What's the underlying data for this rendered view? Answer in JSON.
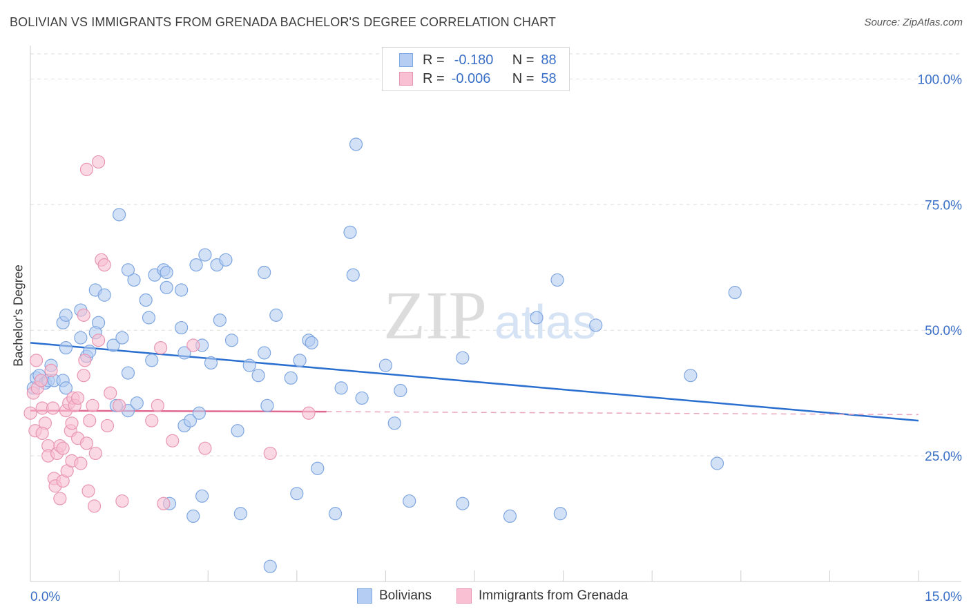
{
  "title": "BOLIVIAN VS IMMIGRANTS FROM GRENADA BACHELOR'S DEGREE CORRELATION CHART",
  "source": "Source: ZipAtlas.com",
  "watermark": {
    "zip": "ZIP",
    "atlas": "atlas"
  },
  "legend": {
    "r_label": "R =",
    "n_label": "N =",
    "rows": [
      {
        "r": "-0.180",
        "n": "88",
        "fill": "#b5cdf2",
        "stroke": "#7ea6e0"
      },
      {
        "r": "-0.006",
        "n": "58",
        "fill": "#f8c0d2",
        "stroke": "#e896b3"
      }
    ]
  },
  "bottom_legend": [
    {
      "label": "Bolivians",
      "fill": "#b5cdf2",
      "stroke": "#7ea6e0"
    },
    {
      "label": "Immigrants from Grenada",
      "fill": "#f8c0d2",
      "stroke": "#e896b3"
    }
  ],
  "chart_data": {
    "type": "scatter",
    "title": "BOLIVIAN VS IMMIGRANTS FROM GRENADA BACHELOR'S DEGREE CORRELATION CHART",
    "xlabel": "",
    "ylabel": "Bachelor's Degree",
    "xlim": [
      0,
      15
    ],
    "ylim": [
      0,
      105
    ],
    "x_tick_labels": [
      {
        "v": 0,
        "t": "0.0%"
      },
      {
        "v": 15,
        "t": "15.0%"
      }
    ],
    "x_minor_ticks": [
      1.5,
      3,
      4.5,
      6,
      7.5,
      9,
      10.5,
      12,
      13.5,
      15
    ],
    "y_ticks": [
      {
        "v": 25,
        "t": "25.0%"
      },
      {
        "v": 50,
        "t": "50.0%"
      },
      {
        "v": 75,
        "t": "75.0%"
      },
      {
        "v": 100,
        "t": "100.0%"
      }
    ],
    "grid": true,
    "series": [
      {
        "name": "Bolivians",
        "color": "#7ea6e0",
        "fill": "#b5cdf2",
        "line_color": "#2a6fcf",
        "trend": {
          "x0": 0,
          "y0": 47.5,
          "x1": 15,
          "y1": 32.0
        },
        "points": [
          [
            0.05,
            38.5
          ],
          [
            0.1,
            40.5
          ],
          [
            0.15,
            41.0
          ],
          [
            0.25,
            39.5
          ],
          [
            0.35,
            43.0
          ],
          [
            0.3,
            40.0
          ],
          [
            0.4,
            40.0
          ],
          [
            0.55,
            40.0
          ],
          [
            0.6,
            38.5
          ],
          [
            0.6,
            46.5
          ],
          [
            0.55,
            51.5
          ],
          [
            0.6,
            53.0
          ],
          [
            0.85,
            48.5
          ],
          [
            0.85,
            54.0
          ],
          [
            1.15,
            51.5
          ],
          [
            1.1,
            49.5
          ],
          [
            0.95,
            44.8
          ],
          [
            1.0,
            45.8
          ],
          [
            1.1,
            58.0
          ],
          [
            1.25,
            57.0
          ],
          [
            1.5,
            73.0
          ],
          [
            1.4,
            47.0
          ],
          [
            1.55,
            48.5
          ],
          [
            1.65,
            41.5
          ],
          [
            1.75,
            60.0
          ],
          [
            1.65,
            62.0
          ],
          [
            1.95,
            56.0
          ],
          [
            2.0,
            52.5
          ],
          [
            2.05,
            44.0
          ],
          [
            2.1,
            61.0
          ],
          [
            2.3,
            58.5
          ],
          [
            2.25,
            62.0
          ],
          [
            2.3,
            61.5
          ],
          [
            2.55,
            58.0
          ],
          [
            2.55,
            50.5
          ],
          [
            2.6,
            45.5
          ],
          [
            2.8,
            63.0
          ],
          [
            2.9,
            47.0
          ],
          [
            2.95,
            65.0
          ],
          [
            3.15,
            63.0
          ],
          [
            3.3,
            64.0
          ],
          [
            3.05,
            43.5
          ],
          [
            3.2,
            52.0
          ],
          [
            3.4,
            48.0
          ],
          [
            3.7,
            43.0
          ],
          [
            3.85,
            41.0
          ],
          [
            3.95,
            45.5
          ],
          [
            3.95,
            61.5
          ],
          [
            4.15,
            53.0
          ],
          [
            4.4,
            40.5
          ],
          [
            4.55,
            44.0
          ],
          [
            4.7,
            48.0
          ],
          [
            4.75,
            47.5
          ],
          [
            5.25,
            38.5
          ],
          [
            5.4,
            69.5
          ],
          [
            5.45,
            61.0
          ],
          [
            5.5,
            87.0
          ],
          [
            5.6,
            36.5
          ],
          [
            6.0,
            43.0
          ],
          [
            6.15,
            31.5
          ],
          [
            6.25,
            38.0
          ],
          [
            5.15,
            13.5
          ],
          [
            4.85,
            22.5
          ],
          [
            4.5,
            17.5
          ],
          [
            4.05,
            3.0
          ],
          [
            3.55,
            13.5
          ],
          [
            3.5,
            30.0
          ],
          [
            2.6,
            31.0
          ],
          [
            2.7,
            32.0
          ],
          [
            2.75,
            13.0
          ],
          [
            2.85,
            33.5
          ],
          [
            2.35,
            15.5
          ],
          [
            2.9,
            17.0
          ],
          [
            1.65,
            34.0
          ],
          [
            1.8,
            35.5
          ],
          [
            1.45,
            35.0
          ],
          [
            7.3,
            44.5
          ],
          [
            7.3,
            15.5
          ],
          [
            8.1,
            13.0
          ],
          [
            8.55,
            52.5
          ],
          [
            8.9,
            60.0
          ],
          [
            8.95,
            13.5
          ],
          [
            9.55,
            51.0
          ],
          [
            11.15,
            41.0
          ],
          [
            11.6,
            23.5
          ],
          [
            11.9,
            57.5
          ],
          [
            4.0,
            35.0
          ],
          [
            6.4,
            16.0
          ]
        ]
      },
      {
        "name": "Immigrants from Grenada",
        "color": "#e896b3",
        "fill": "#f8c0d2",
        "line_color": "#e0678f",
        "trend": {
          "x0": 0,
          "y0": 34.0,
          "x1": 5.0,
          "y1": 33.8
        },
        "trend_dashed_end": {
          "x": 15,
          "y": 33.2
        },
        "points": [
          [
            0.0,
            33.5
          ],
          [
            0.05,
            37.5
          ],
          [
            0.08,
            30.0
          ],
          [
            0.12,
            38.5
          ],
          [
            0.18,
            40.0
          ],
          [
            0.2,
            34.5
          ],
          [
            0.25,
            31.5
          ],
          [
            0.3,
            27.0
          ],
          [
            0.3,
            25.0
          ],
          [
            0.35,
            42.0
          ],
          [
            0.38,
            34.5
          ],
          [
            0.4,
            20.5
          ],
          [
            0.42,
            19.0
          ],
          [
            0.45,
            25.5
          ],
          [
            0.5,
            27.0
          ],
          [
            0.5,
            16.5
          ],
          [
            0.55,
            26.5
          ],
          [
            0.55,
            20.0
          ],
          [
            0.6,
            34.0
          ],
          [
            0.62,
            22.0
          ],
          [
            0.65,
            35.5
          ],
          [
            0.68,
            30.0
          ],
          [
            0.7,
            24.0
          ],
          [
            0.72,
            36.5
          ],
          [
            0.75,
            35.0
          ],
          [
            0.8,
            28.5
          ],
          [
            0.85,
            23.5
          ],
          [
            0.9,
            53.0
          ],
          [
            0.9,
            41.0
          ],
          [
            0.92,
            44.0
          ],
          [
            0.95,
            27.5
          ],
          [
            0.98,
            18.0
          ],
          [
            1.0,
            32.0
          ],
          [
            1.05,
            35.0
          ],
          [
            1.08,
            15.0
          ],
          [
            1.1,
            25.5
          ],
          [
            1.15,
            48.0
          ],
          [
            1.2,
            64.0
          ],
          [
            1.25,
            63.0
          ],
          [
            1.3,
            31.0
          ],
          [
            1.35,
            37.5
          ],
          [
            1.5,
            35.0
          ],
          [
            1.55,
            16.0
          ],
          [
            2.05,
            32.0
          ],
          [
            2.15,
            35.0
          ],
          [
            2.2,
            46.5
          ],
          [
            2.25,
            15.5
          ],
          [
            2.4,
            28.0
          ],
          [
            2.75,
            47.0
          ],
          [
            2.95,
            26.5
          ],
          [
            4.05,
            25.5
          ],
          [
            4.7,
            33.5
          ],
          [
            0.8,
            36.5
          ],
          [
            0.7,
            31.5
          ],
          [
            0.1,
            44.0
          ],
          [
            0.95,
            82.0
          ],
          [
            1.15,
            83.5
          ],
          [
            0.2,
            29.5
          ]
        ]
      }
    ]
  }
}
